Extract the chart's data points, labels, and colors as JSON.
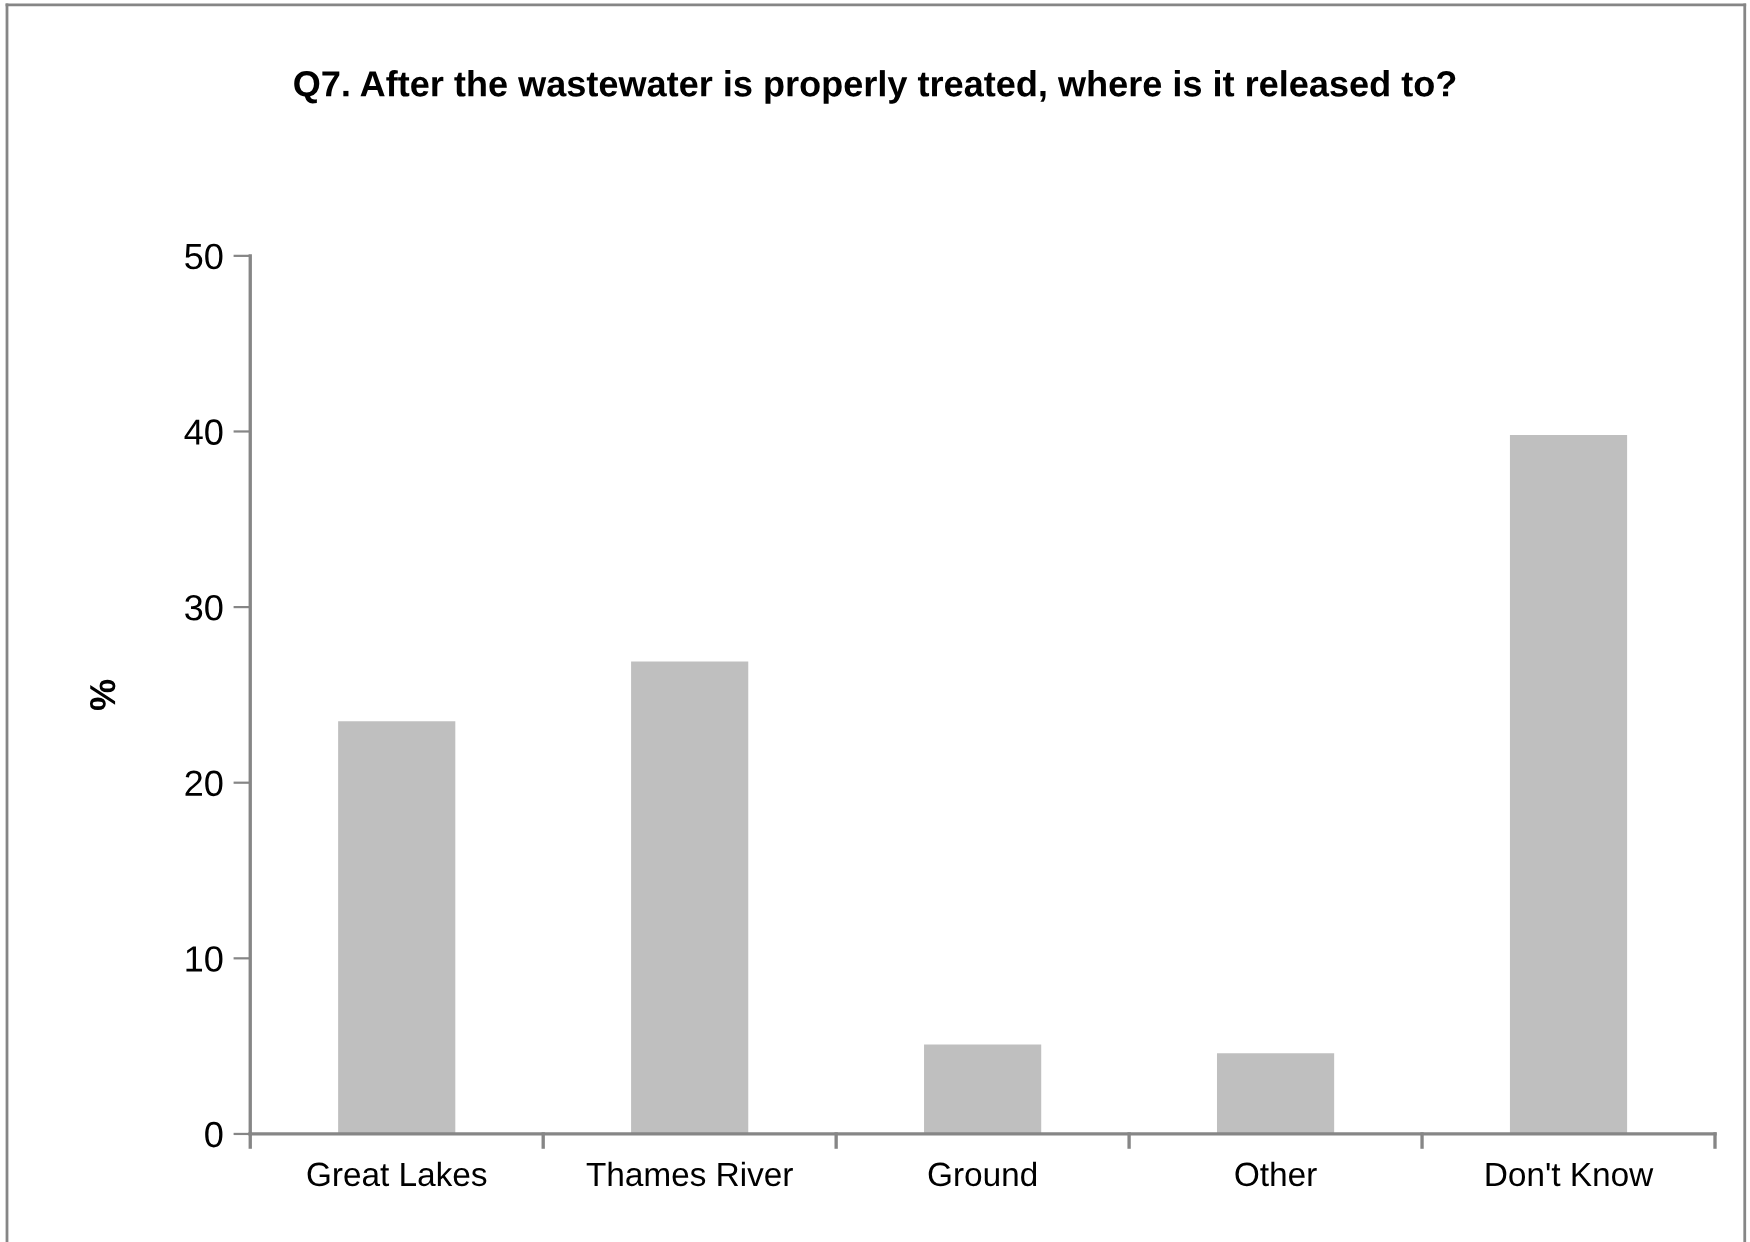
{
  "chart_data": {
    "type": "bar",
    "title": "Q7. After the wastewater is properly treated, where is it released to?",
    "ylabel": "%",
    "categories": [
      "Great Lakes",
      "Thames River",
      "Ground",
      "Other",
      "Don't Know"
    ],
    "values": [
      23.5,
      26.9,
      5.1,
      4.6,
      39.8
    ],
    "color": "#bfbfbf",
    "ylim": [
      0,
      50
    ],
    "yticks": [
      0,
      10,
      20,
      30,
      40,
      50
    ],
    "grid": false,
    "legend": false
  }
}
